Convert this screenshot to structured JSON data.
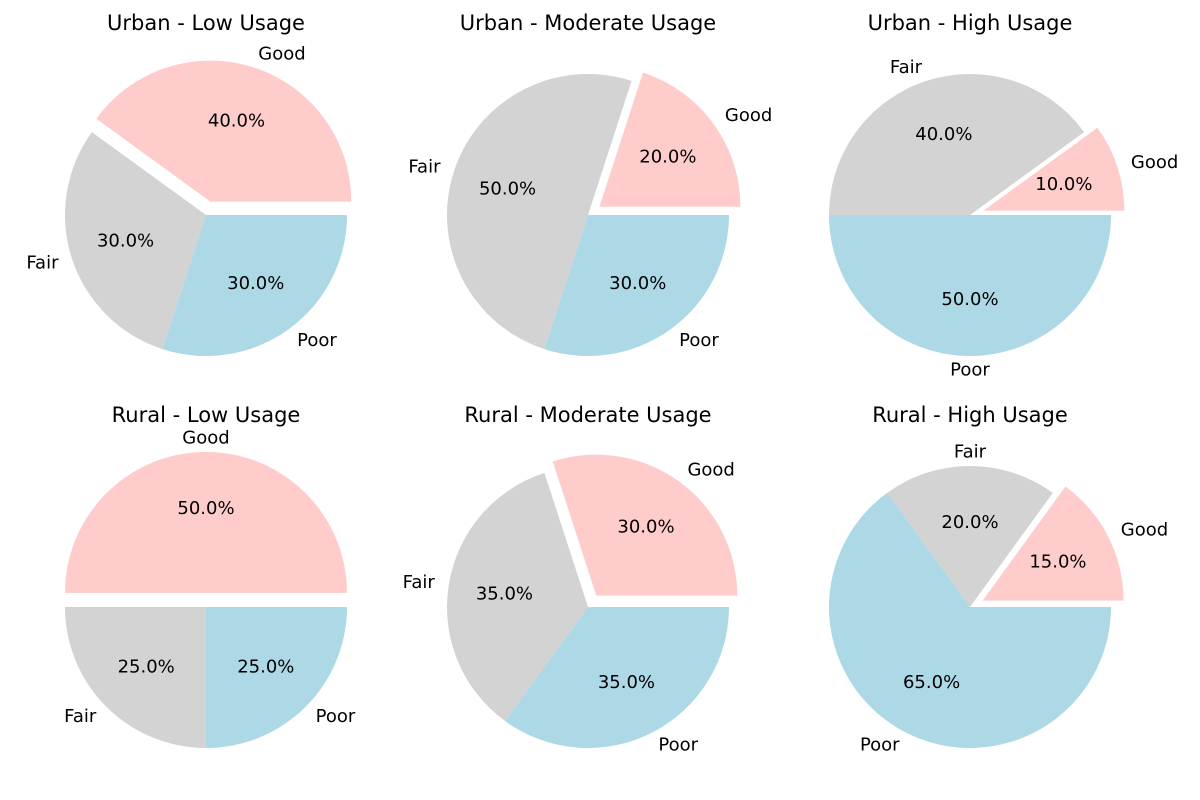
{
  "colors": {
    "Good": "#ffcccc",
    "Fair": "#d3d3d3",
    "Poor": "#add8e6"
  },
  "chart_data": [
    {
      "type": "pie",
      "title": "Urban - Low Usage",
      "categories": [
        "Good",
        "Fair",
        "Poor"
      ],
      "values": [
        40,
        30,
        30
      ],
      "value_labels": [
        "40.0%",
        "30.0%",
        "30.0%"
      ],
      "exploded": [
        "Good"
      ]
    },
    {
      "type": "pie",
      "title": "Urban - Moderate Usage",
      "categories": [
        "Good",
        "Fair",
        "Poor"
      ],
      "values": [
        20,
        50,
        30
      ],
      "value_labels": [
        "20.0%",
        "50.0%",
        "30.0%"
      ],
      "exploded": [
        "Good"
      ]
    },
    {
      "type": "pie",
      "title": "Urban - High Usage",
      "categories": [
        "Good",
        "Fair",
        "Poor"
      ],
      "values": [
        10,
        40,
        50
      ],
      "value_labels": [
        "10.0%",
        "40.0%",
        "50.0%"
      ],
      "exploded": [
        "Good"
      ]
    },
    {
      "type": "pie",
      "title": "Rural - Low Usage",
      "categories": [
        "Good",
        "Fair",
        "Poor"
      ],
      "values": [
        50,
        25,
        25
      ],
      "value_labels": [
        "50.0%",
        "25.0%",
        "25.0%"
      ],
      "exploded": [
        "Good"
      ]
    },
    {
      "type": "pie",
      "title": "Rural - Moderate Usage",
      "categories": [
        "Good",
        "Fair",
        "Poor"
      ],
      "values": [
        30,
        35,
        35
      ],
      "value_labels": [
        "30.0%",
        "35.0%",
        "35.0%"
      ],
      "exploded": [
        "Good"
      ]
    },
    {
      "type": "pie",
      "title": "Rural - High Usage",
      "categories": [
        "Good",
        "Fair",
        "Poor"
      ],
      "values": [
        15,
        20,
        65
      ],
      "value_labels": [
        "15.0%",
        "20.0%",
        "65.0%"
      ],
      "exploded": [
        "Good"
      ]
    }
  ]
}
